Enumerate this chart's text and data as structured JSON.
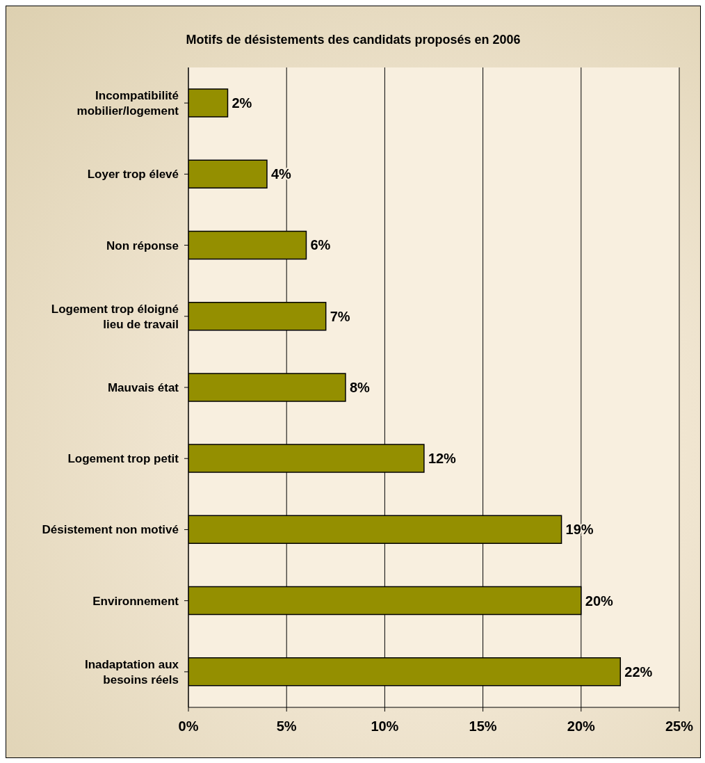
{
  "chart_data": {
    "type": "bar",
    "orientation": "horizontal",
    "title": "Motifs de désistements des candidats proposés en 2006",
    "categories": [
      "Incompatibilité mobilier/logement",
      "Loyer trop élevé",
      "Non réponse",
      "Logement trop éloigné lieu de travail",
      "Mauvais état",
      "Logement trop petit",
      "Désistement non motivé",
      "Environnement",
      "Inadaptation aux besoins réels"
    ],
    "values": [
      2,
      4,
      6,
      7,
      8,
      12,
      19,
      20,
      22
    ],
    "value_labels": [
      "2%",
      "4%",
      "6%",
      "7%",
      "8%",
      "12%",
      "19%",
      "20%",
      "22%"
    ],
    "color": "#948f00",
    "xlim": [
      0,
      25
    ],
    "xticks": [
      {
        "value": 0,
        "label": "0%"
      },
      {
        "value": 5,
        "label": "5%"
      },
      {
        "value": 10,
        "label": "10%"
      },
      {
        "value": 15,
        "label": "15%"
      },
      {
        "value": 20,
        "label": "20%"
      },
      {
        "value": 25,
        "label": "25%"
      }
    ],
    "grid": "x"
  }
}
